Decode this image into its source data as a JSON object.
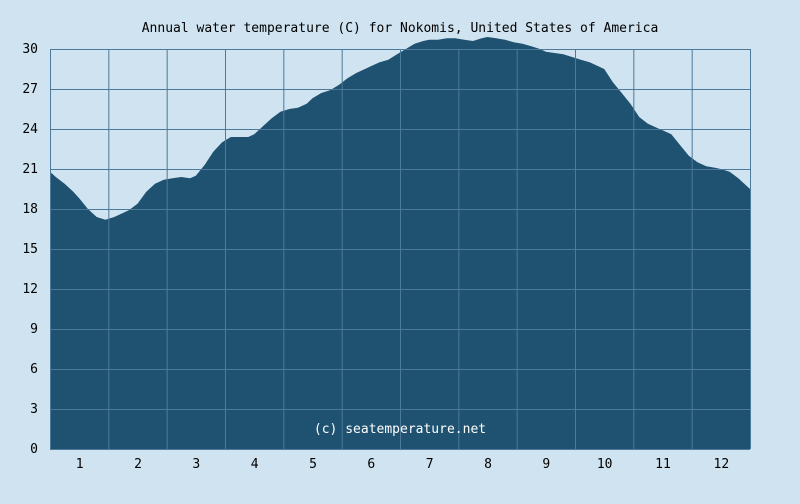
{
  "chart_data": {
    "type": "area",
    "title": "Annual water temperature (C) for Nokomis, United States of America",
    "watermark": "(c) seatemperature.net",
    "xlabel": "",
    "ylabel": "",
    "x_ticks": [
      "1",
      "2",
      "3",
      "4",
      "5",
      "6",
      "7",
      "8",
      "9",
      "10",
      "11",
      "12"
    ],
    "y_ticks": [
      0,
      3,
      6,
      9,
      12,
      15,
      18,
      21,
      24,
      27,
      30
    ],
    "ylim": [
      0,
      30
    ],
    "xlim": [
      0.5,
      12.5
    ],
    "grid": true,
    "colors": {
      "background": "#cfe3f0",
      "fill": "#1f5170",
      "grid_lines": "#4d7a9a",
      "plot_background": "#cfe3f0"
    },
    "series": [
      {
        "x": [
          0.5,
          0.6,
          0.75,
          0.9,
          1.0,
          1.15,
          1.3,
          1.45,
          1.6,
          1.75,
          1.85,
          2.0,
          2.15,
          2.3,
          2.45,
          2.6,
          2.75,
          2.9,
          3.0,
          3.15,
          3.3,
          3.45,
          3.6,
          3.75,
          3.9,
          4.0,
          4.15,
          4.3,
          4.45,
          4.6,
          4.75,
          4.9,
          5.0,
          5.15,
          5.3,
          5.45,
          5.6,
          5.75,
          5.9,
          6.0,
          6.15,
          6.3,
          6.45,
          6.6,
          6.75,
          6.9,
          7.0,
          7.15,
          7.3,
          7.45,
          7.6,
          7.75,
          7.9,
          8.0,
          8.15,
          8.3,
          8.45,
          8.6,
          8.75,
          8.9,
          9.0,
          9.15,
          9.3,
          9.45,
          9.6,
          9.75,
          9.9,
          10.0,
          10.15,
          10.3,
          10.45,
          10.6,
          10.75,
          10.9,
          11.0,
          11.15,
          11.3,
          11.45,
          11.6,
          11.75,
          11.9,
          12.0,
          12.15,
          12.3,
          12.5
        ],
        "y": [
          20.8,
          20.4,
          19.9,
          19.3,
          18.8,
          18.0,
          17.4,
          17.2,
          17.4,
          17.7,
          17.9,
          18.4,
          19.3,
          19.9,
          20.2,
          20.3,
          20.4,
          20.3,
          20.5,
          21.3,
          22.3,
          23.0,
          23.4,
          23.4,
          23.4,
          23.6,
          24.2,
          24.8,
          25.3,
          25.5,
          25.6,
          25.9,
          26.3,
          26.7,
          26.9,
          27.3,
          27.8,
          28.2,
          28.5,
          28.7,
          29.0,
          29.2,
          29.6,
          30.0,
          30.4,
          30.6,
          30.7,
          30.7,
          30.8,
          30.8,
          30.7,
          30.6,
          30.8,
          30.9,
          30.8,
          30.7,
          30.5,
          30.4,
          30.2,
          30.0,
          29.8,
          29.7,
          29.6,
          29.4,
          29.2,
          29.0,
          28.7,
          28.5,
          27.5,
          26.7,
          25.9,
          24.9,
          24.4,
          24.1,
          23.9,
          23.6,
          22.8,
          22.0,
          21.5,
          21.2,
          21.1,
          21.0,
          20.8,
          20.3,
          19.5
        ]
      }
    ]
  }
}
